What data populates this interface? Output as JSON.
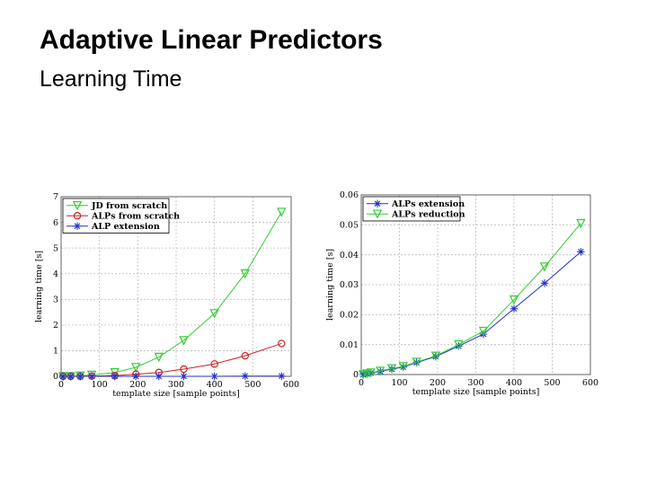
{
  "slide": {
    "title": "Adaptive Linear Predictors",
    "subtitle": "Learning Time"
  },
  "colors": {
    "green": "#33cc33",
    "red": "#cc2222",
    "blue": "#2233cc",
    "black": "#000000",
    "grid": "#bbbbbb"
  },
  "chart_data": [
    {
      "type": "line",
      "xlabel": "template size [sample points]",
      "ylabel": "learning time [s]",
      "xlim": [
        0,
        600
      ],
      "ylim": [
        0,
        7
      ],
      "xticks": [
        0,
        100,
        200,
        300,
        400,
        500,
        600
      ],
      "yticks": [
        0,
        1,
        2,
        3,
        4,
        5,
        6,
        7
      ],
      "grid": true,
      "legend_position": "top-left",
      "series": [
        {
          "name": "JD from scratch",
          "color": "#33cc33",
          "marker": "triangle-down",
          "x": [
            5,
            25,
            50,
            80,
            140,
            195,
            255,
            320,
            400,
            480,
            575
          ],
          "y": [
            0.0,
            0.0,
            0.02,
            0.05,
            0.15,
            0.35,
            0.75,
            1.4,
            2.45,
            4.0,
            6.4
          ]
        },
        {
          "name": "ALPs from scratch",
          "color": "#cc2222",
          "marker": "circle",
          "x": [
            5,
            25,
            50,
            80,
            140,
            195,
            255,
            320,
            400,
            480,
            575
          ],
          "y": [
            0.0,
            0.0,
            0.0,
            0.01,
            0.03,
            0.08,
            0.15,
            0.28,
            0.48,
            0.8,
            1.28
          ]
        },
        {
          "name": "ALP extension",
          "color": "#2233cc",
          "marker": "star",
          "x": [
            5,
            25,
            50,
            80,
            140,
            195,
            255,
            320,
            400,
            480,
            575
          ],
          "y": [
            0.0,
            0.0,
            0.0,
            0.0,
            0.0,
            0.0,
            0.0,
            0.0,
            0.0,
            0.01,
            0.01
          ]
        }
      ]
    },
    {
      "type": "line",
      "xlabel": "template size [sample points]",
      "ylabel": "learning time [s]",
      "xlim": [
        0,
        600
      ],
      "ylim": [
        0,
        0.06
      ],
      "xticks": [
        0,
        100,
        200,
        300,
        400,
        500,
        600
      ],
      "yticks": [
        0,
        0.01,
        0.02,
        0.03,
        0.04,
        0.05,
        0.06
      ],
      "ytick_labels": [
        "0",
        "0.01",
        "0.02",
        "0.03",
        "0.04",
        "0.05",
        "0.06"
      ],
      "grid": true,
      "legend_position": "top-left",
      "series": [
        {
          "name": "ALPs extension",
          "color": "#2233cc",
          "marker": "star",
          "x": [
            5,
            15,
            25,
            50,
            80,
            110,
            145,
            195,
            255,
            320,
            400,
            480,
            575
          ],
          "y": [
            0.0,
            0.0002,
            0.0005,
            0.001,
            0.0018,
            0.0025,
            0.004,
            0.006,
            0.0095,
            0.0135,
            0.022,
            0.0305,
            0.041
          ]
        },
        {
          "name": "ALPs reduction",
          "color": "#33cc33",
          "marker": "triangle-down",
          "x": [
            5,
            15,
            25,
            50,
            80,
            110,
            145,
            195,
            255,
            320,
            400,
            480,
            575
          ],
          "y": [
            0.0,
            0.0003,
            0.0006,
            0.0012,
            0.002,
            0.0027,
            0.0042,
            0.0062,
            0.01,
            0.0145,
            0.025,
            0.036,
            0.0505
          ]
        }
      ]
    }
  ]
}
